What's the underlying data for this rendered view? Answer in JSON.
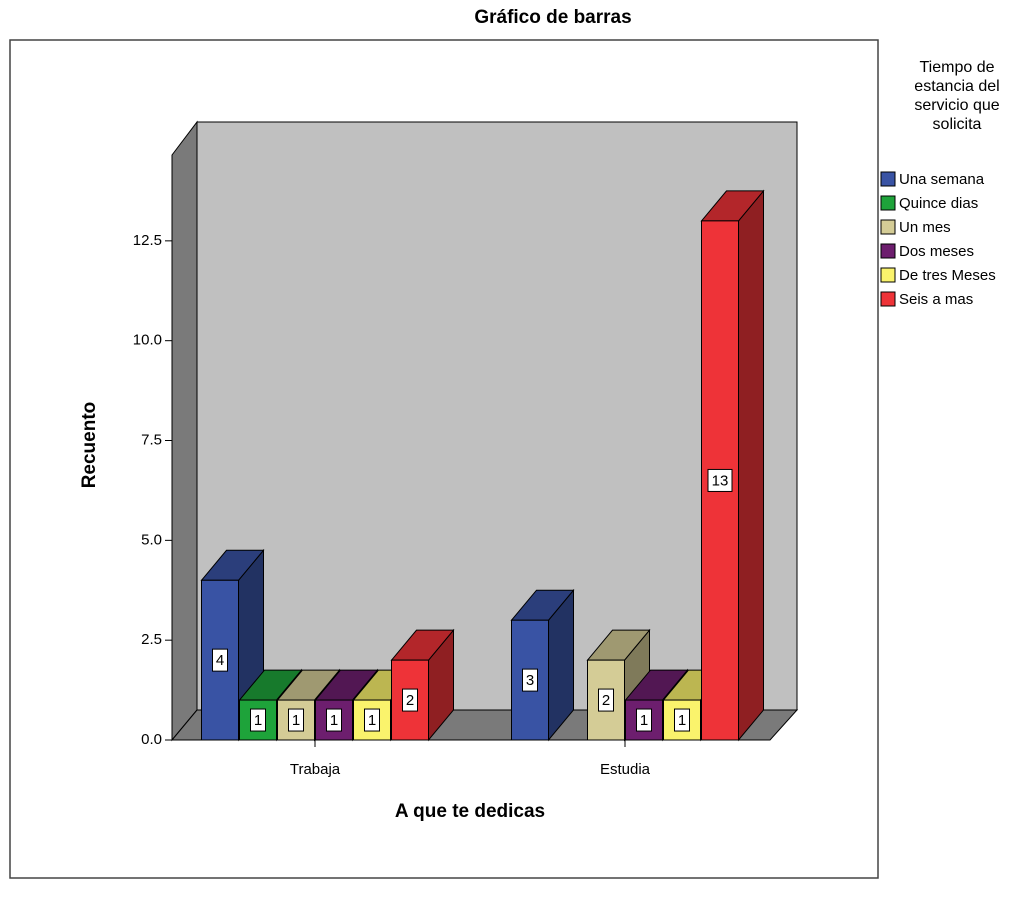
{
  "chart_data": {
    "type": "bar3d",
    "title": "Gráfico de barras",
    "x_label": "A que te dedicas",
    "y_label": "Recuento",
    "legend_title": [
      "Tiempo de",
      "estancia del",
      "servicio que",
      "solicita"
    ],
    "categories": [
      "Trabaja",
      "Estudia"
    ],
    "series": [
      {
        "name": "Una semana",
        "color": "#3953a4",
        "values": [
          4,
          3
        ]
      },
      {
        "name": "Quince dias",
        "color": "#1ea33a",
        "values": [
          1,
          null
        ]
      },
      {
        "name": "Un mes",
        "color": "#d4cc96",
        "values": [
          1,
          2
        ]
      },
      {
        "name": "Dos meses",
        "color": "#6d1e6e",
        "values": [
          1,
          1
        ]
      },
      {
        "name": "De tres Meses",
        "color": "#faf36c",
        "values": [
          1,
          1
        ]
      },
      {
        "name": "Seis a mas",
        "color": "#ee3338",
        "values": [
          2,
          13
        ]
      }
    ],
    "ylim": [
      0,
      14.65
    ],
    "yticks": [
      {
        "value": 0,
        "label": "0.0"
      },
      {
        "value": 2.5,
        "label": "2.5"
      },
      {
        "value": 5,
        "label": "5.0"
      },
      {
        "value": 7.5,
        "label": "7.5"
      },
      {
        "value": 10,
        "label": "10.0"
      },
      {
        "value": 12.5,
        "label": "12.5"
      }
    ],
    "legend": "right"
  }
}
